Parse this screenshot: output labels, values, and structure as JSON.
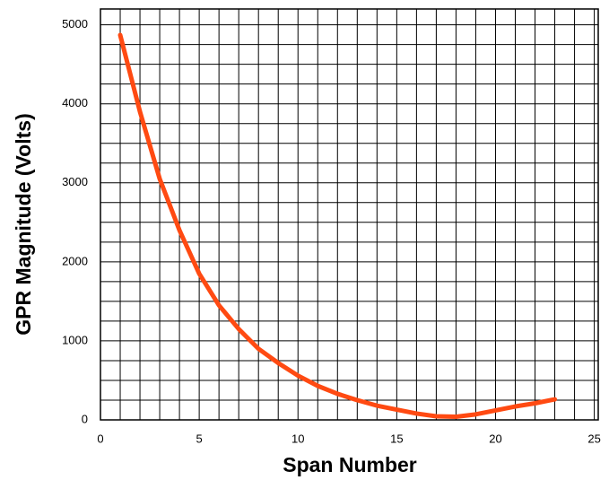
{
  "chart_data": {
    "type": "line",
    "xlabel": "Span Number",
    "ylabel": "GPR Magnitude (Volts)",
    "x": [
      1,
      2,
      3,
      4,
      5,
      6,
      7,
      8,
      9,
      10,
      11,
      12,
      13,
      14,
      15,
      16,
      17,
      18,
      19,
      20,
      21,
      22,
      23
    ],
    "series": [
      {
        "name": "GPR",
        "color": "#ff4a12",
        "values": [
          4870,
          3900,
          3050,
          2400,
          1850,
          1450,
          1150,
          900,
          720,
          560,
          430,
          330,
          250,
          180,
          130,
          80,
          45,
          40,
          70,
          120,
          170,
          210,
          260
        ]
      }
    ],
    "xlim": [
      0,
      25.2
    ],
    "ylim": [
      0,
      5200
    ],
    "xticks": [
      0,
      5,
      10,
      15,
      20,
      25
    ],
    "yticks": [
      0,
      1000,
      2000,
      3000,
      4000,
      5000
    ],
    "x_grid": [
      0,
      1,
      2,
      3,
      4,
      5,
      6,
      7,
      8,
      9,
      10,
      11,
      12,
      13,
      14,
      15,
      16,
      17,
      18,
      19,
      20,
      21,
      22,
      23,
      24,
      25
    ],
    "y_grid": [
      0,
      250,
      500,
      750,
      1000,
      1250,
      1500,
      1750,
      2000,
      2250,
      2500,
      2750,
      3000,
      3250,
      3500,
      3750,
      4000,
      4250,
      4500,
      4750,
      5000
    ],
    "grid": true
  }
}
